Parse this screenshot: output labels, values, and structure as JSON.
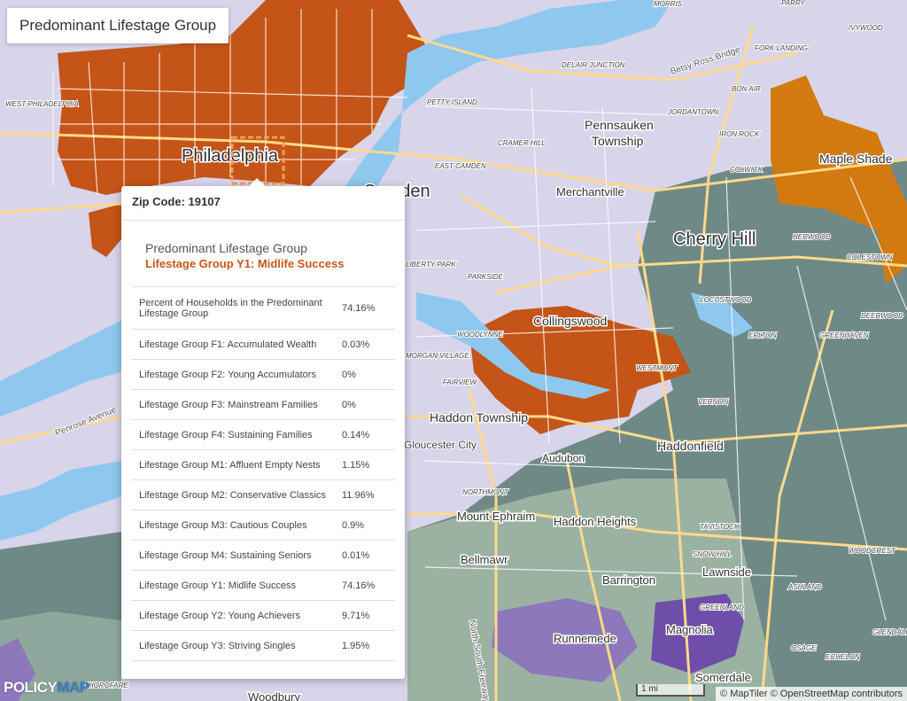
{
  "title": "Predominant Lifestage Group",
  "popup": {
    "zip_label": "Zip Code: 19107",
    "indicator_label": "Predominant Lifestage Group",
    "indicator_value": "Lifestage Group Y1: Midlife Success",
    "rows": [
      {
        "label": "Percent of Households in the Predominant Lifestage Group",
        "value": "74.16%"
      },
      {
        "label": "Lifestage Group F1: Accumulated Wealth",
        "value": "0.03%"
      },
      {
        "label": "Lifestage Group F2: Young Accumulators",
        "value": "0%"
      },
      {
        "label": "Lifestage Group F3: Mainstream Families",
        "value": "0%"
      },
      {
        "label": "Lifestage Group F4: Sustaining Families",
        "value": "0.14%"
      },
      {
        "label": "Lifestage Group M1: Affluent Empty Nests",
        "value": "1.15%"
      },
      {
        "label": "Lifestage Group M2: Conservative Classics",
        "value": "11.96%"
      },
      {
        "label": "Lifestage Group M3: Cautious Couples",
        "value": "0.9%"
      },
      {
        "label": "Lifestage Group M4: Sustaining Seniors",
        "value": "0.01%"
      },
      {
        "label": "Lifestage Group Y1: Midlife Success",
        "value": "74.16%"
      },
      {
        "label": "Lifestage Group Y2: Young Achievers",
        "value": "9.71%"
      },
      {
        "label": "Lifestage Group Y3: Striving Singles",
        "value": "1.95%"
      }
    ]
  },
  "map_labels": {
    "big": [
      "Philadelphia",
      "Camden",
      "Cherry Hill"
    ],
    "medium": [
      "Pennsauken",
      "Township",
      "Merchantville",
      "Maple Shade",
      "Collingswood",
      "Haddon Township",
      "Haddonfield",
      "Audubon",
      "Mount Ephraim",
      "Haddon Heights",
      "Bellmawr",
      "Barrington",
      "Lawnside",
      "Runnemede",
      "Magnolia",
      "Somerdale",
      "Woodbury",
      "Gloucester City"
    ],
    "small": [
      "MORRIS",
      "PARRY",
      "IVYWOOD",
      "FORK LANDING",
      "DELAIR JUNCTION",
      "BON AIR",
      "PETTY ISLAND",
      "JORDANTOWN",
      "IRON ROCK",
      "CRAMER HILL",
      "EAST CAMDEN",
      "COLWICK",
      "HERWOOD",
      "COLESTOWN",
      "LOCUSTWOOD",
      "DEERWOOD",
      "ERLTON",
      "GREENHAVEN",
      "WOODLYNNE",
      "WESTMONT",
      "FAIRVIEW",
      "PARKSIDE",
      "VERNON",
      "NORTHMONT",
      "TAVISTOCK",
      "SNOW HILL",
      "WOODCREST",
      "ASHLAND",
      "GREENLAND",
      "OSAGE",
      "ECHELON",
      "GLENDALE",
      "THOROFARE",
      "WEST PHILADELPHIA",
      "MORGAN VILLAGE",
      "LIBERTY PARK"
    ],
    "roads": [
      "Betsy Ross Bridge",
      "Penrose Avenue",
      "North-South Freeway"
    ]
  },
  "colors": {
    "base": "#d8d4ea",
    "water": "#8ec8ee",
    "y1_midlife": "#c45417",
    "y2": "#d27a10",
    "green_gray": "#6f8a86",
    "light_green": "#9bb2a3",
    "purple": "#8d78bc",
    "dark_purple": "#6f4ea9",
    "road": "#ffd98a"
  },
  "logo": {
    "part1": "POLICY",
    "part2": "MAP"
  },
  "scale_label": "1 mi",
  "attribution": "© MapTiler © OpenStreetMap contributors"
}
